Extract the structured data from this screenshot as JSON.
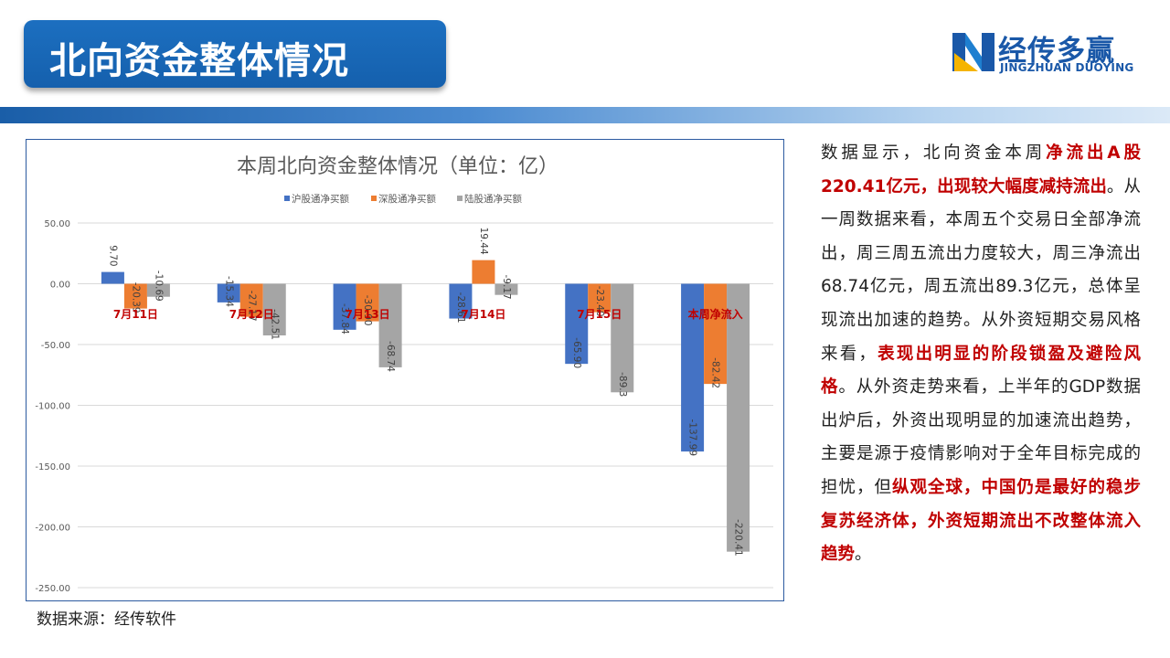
{
  "page": {
    "title": "北向资金整体情况",
    "brand_name": "经传多赢",
    "brand_sub": "JINGZHUAN DUOYING",
    "source": "数据来源：经传软件"
  },
  "analysis": {
    "s1": "数据显示，北向资金本周",
    "h1": "净流出A股220.41亿元，出现较大幅度减持流出",
    "s2": "。从一周数据来看，本周五个交易日全部净流出，周三周五流出力度较大，周三净流出68.74亿元，周五流出89.3亿元，总体呈现流出加速的趋势。从外资短期交易风格来看，",
    "h2": "表现出明显的阶段锁盈及避险风格",
    "s3": "。从外资走势来看，上半年的GDP数据出炉后，外资出现明显的加速流出趋势，主要是源于疫情影响对于全年目标完成的担忧，但",
    "h3": "纵观全球，中国仍是最好的稳步复苏经济体，外资短期流出不改整体流入趋势",
    "s4": "。"
  },
  "colors": {
    "hu": "#4472c4",
    "shen": "#ed7d31",
    "lu": "#a5a5a5",
    "category_label": "#c00000",
    "highlight": "#c00000",
    "brand": "#1a58a8"
  },
  "chart_data": {
    "type": "bar",
    "title": "本周北向资金整体情况（单位：亿）",
    "categories": [
      "7月11日",
      "7月12日",
      "7月13日",
      "7月14日",
      "7月15日",
      "本周净流入"
    ],
    "series": [
      {
        "name": "沪股通净买额",
        "values": [
          9.7,
          -15.34,
          -37.84,
          -28.61,
          -65.9,
          -137.99
        ],
        "labels": [
          "9.70",
          "-15.34",
          "-37.84",
          "-28.61",
          "-65.90",
          "-137.99"
        ]
      },
      {
        "name": "深股通净买额",
        "values": [
          -20.39,
          -27.17,
          -30.9,
          19.44,
          -23.4,
          -82.42
        ],
        "labels": [
          "-20.39",
          "-27.17",
          "-30.90",
          "19.44",
          "-23.40",
          "-82.42"
        ]
      },
      {
        "name": "陆股通净买额",
        "values": [
          -10.69,
          -42.51,
          -68.74,
          -9.17,
          -89.3,
          -220.41
        ],
        "labels": [
          "-10.69",
          "-42.51",
          "-68.74",
          "-9.17",
          "-89.3",
          "-220.41"
        ]
      }
    ],
    "ylim": [
      -250,
      50
    ],
    "yticks": [
      "50.00",
      "0.00",
      "-50.00",
      "-100.00",
      "-150.00",
      "-200.00",
      "-250.00"
    ],
    "ytick_values": [
      50,
      0,
      -50,
      -100,
      -150,
      -200,
      -250
    ],
    "grid": true,
    "legend": "top"
  }
}
